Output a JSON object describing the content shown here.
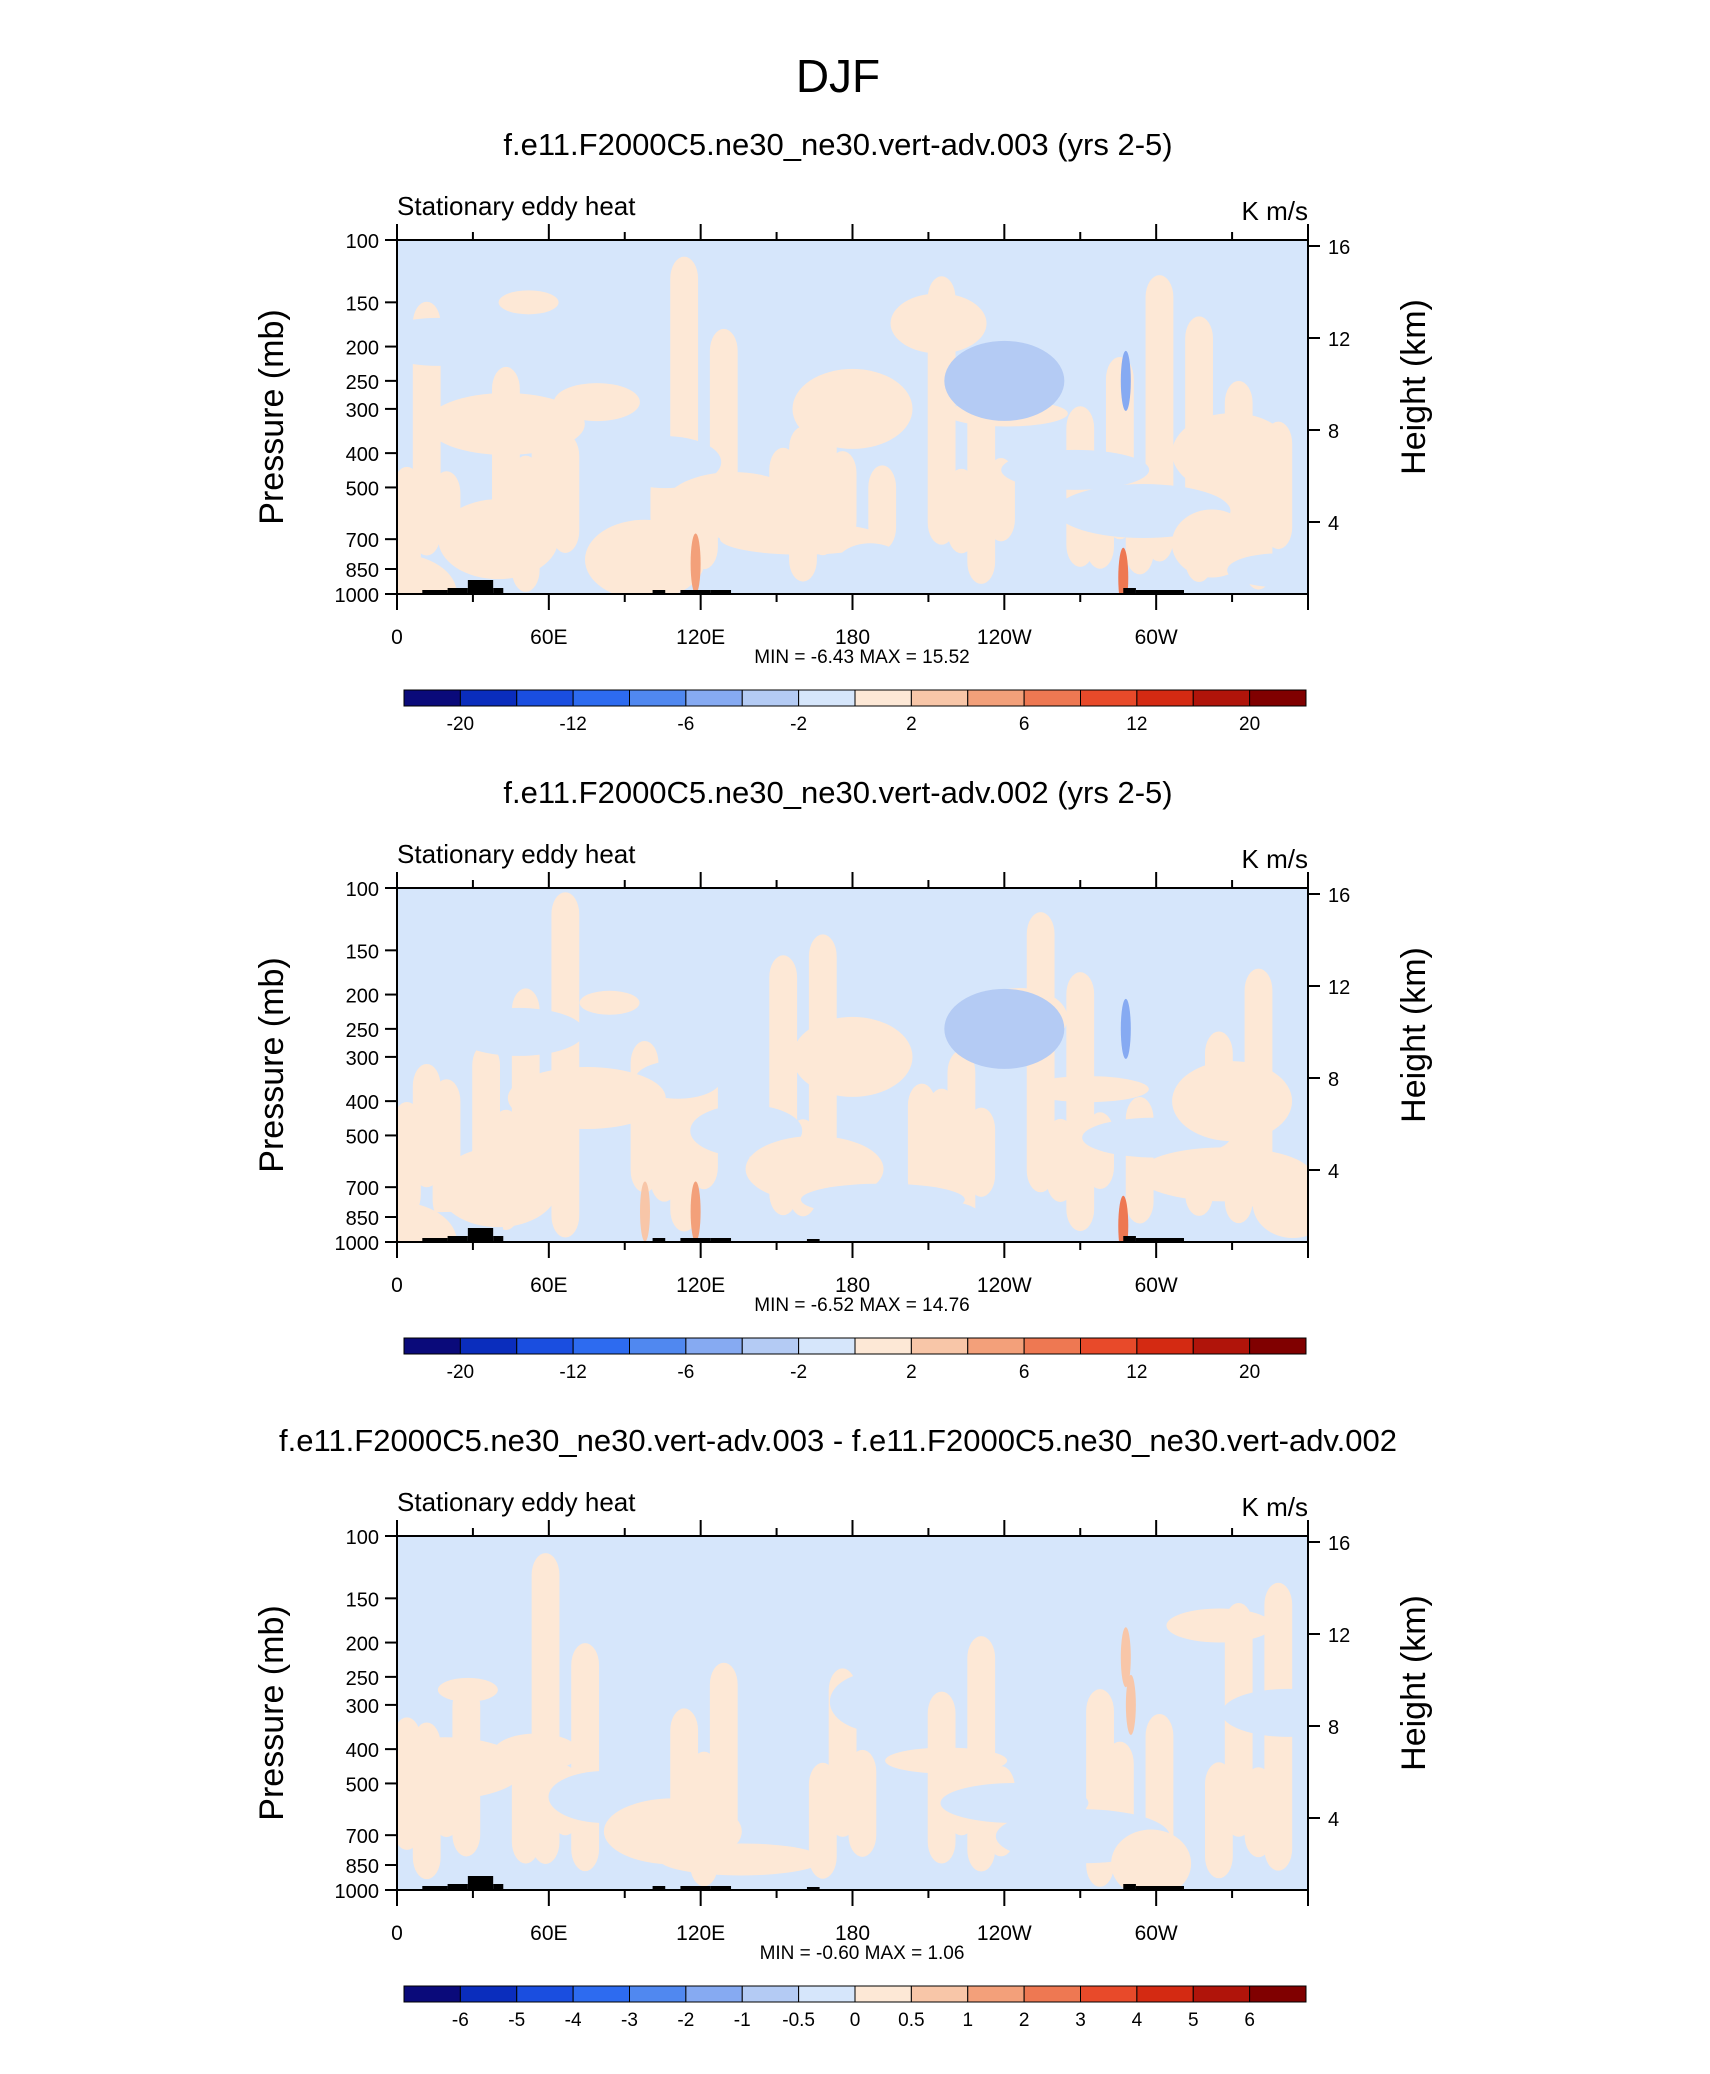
{
  "figure_title": "DJF",
  "chart_data": [
    {
      "type": "heatmap",
      "title": "f.e11.F2000C5.ne30_ne30.vert-adv.003 (yrs 2-5)",
      "left_label": "Stationary eddy heat",
      "units": "K m/s",
      "ylabel": "Pressure (mb)",
      "ylabel_right": "Height (km)",
      "x_ticks": [
        "0",
        "60E",
        "120E",
        "180",
        "120W",
        "60W"
      ],
      "x_tick_lon": [
        0,
        60,
        120,
        180,
        240,
        300
      ],
      "y_ticks": [
        "100",
        "150",
        "200",
        "250",
        "300",
        "400",
        "500",
        "700",
        "850",
        "1000"
      ],
      "y_tick_values": [
        100,
        150,
        200,
        250,
        300,
        400,
        500,
        700,
        850,
        1000
      ],
      "y_right_ticks": [
        "16",
        "12",
        "8",
        "4"
      ],
      "y_right_values": [
        16,
        12,
        8,
        4
      ],
      "ylim": [
        1000,
        100
      ],
      "xlim": [
        0,
        360
      ],
      "stats": "MIN =  -6.43  MAX =  15.52",
      "colorbar_labels": [
        "-20",
        "-12",
        "-6",
        "-2",
        "2",
        "6",
        "12",
        "20"
      ],
      "colorbar_label_slots": [
        1,
        3,
        5,
        7,
        9,
        11,
        13,
        15
      ],
      "features": [
        {
          "lon": 0,
          "p": 1000,
          "sign": 1
        },
        {
          "lon": 40,
          "p": 700,
          "sign": 1
        },
        {
          "lon": 98,
          "p": 800,
          "sign": 1
        },
        {
          "lon": 118,
          "p": 820,
          "sign": 3
        },
        {
          "lon": 180,
          "p": 300,
          "sign": 1
        },
        {
          "lon": 240,
          "p": 250,
          "sign": -1
        },
        {
          "lon": 287,
          "p": 900,
          "sign": 4
        },
        {
          "lon": 288,
          "p": 250,
          "sign": -2
        },
        {
          "lon": 330,
          "p": 400,
          "sign": 1
        }
      ]
    },
    {
      "type": "heatmap",
      "title": "f.e11.F2000C5.ne30_ne30.vert-adv.002 (yrs 2-5)",
      "left_label": "Stationary eddy heat",
      "units": "K m/s",
      "ylabel": "Pressure (mb)",
      "ylabel_right": "Height (km)",
      "x_ticks": [
        "0",
        "60E",
        "120E",
        "180",
        "120W",
        "60W"
      ],
      "x_tick_lon": [
        0,
        60,
        120,
        180,
        240,
        300
      ],
      "y_ticks": [
        "100",
        "150",
        "200",
        "250",
        "300",
        "400",
        "500",
        "700",
        "850",
        "1000"
      ],
      "y_tick_values": [
        100,
        150,
        200,
        250,
        300,
        400,
        500,
        700,
        850,
        1000
      ],
      "y_right_ticks": [
        "16",
        "12",
        "8",
        "4"
      ],
      "y_right_values": [
        16,
        12,
        8,
        4
      ],
      "ylim": [
        1000,
        100
      ],
      "xlim": [
        0,
        360
      ],
      "stats": "MIN =  -6.52  MAX =  14.76",
      "colorbar_labels": [
        "-20",
        "-12",
        "-6",
        "-2",
        "2",
        "6",
        "12",
        "20"
      ],
      "colorbar_label_slots": [
        1,
        3,
        5,
        7,
        9,
        11,
        13,
        15
      ],
      "features": [
        {
          "lon": 0,
          "p": 1000,
          "sign": 1
        },
        {
          "lon": 40,
          "p": 700,
          "sign": 1
        },
        {
          "lon": 98,
          "p": 820,
          "sign": 2
        },
        {
          "lon": 118,
          "p": 820,
          "sign": 3
        },
        {
          "lon": 180,
          "p": 300,
          "sign": 1
        },
        {
          "lon": 240,
          "p": 250,
          "sign": -1
        },
        {
          "lon": 287,
          "p": 900,
          "sign": 4
        },
        {
          "lon": 288,
          "p": 250,
          "sign": -2
        },
        {
          "lon": 330,
          "p": 400,
          "sign": 1
        }
      ]
    },
    {
      "type": "heatmap",
      "title": "f.e11.F2000C5.ne30_ne30.vert-adv.003 - f.e11.F2000C5.ne30_ne30.vert-adv.002",
      "left_label": "Stationary eddy heat",
      "units": "K m/s",
      "ylabel": "Pressure (mb)",
      "ylabel_right": "Height (km)",
      "x_ticks": [
        "0",
        "60E",
        "120E",
        "180",
        "120W",
        "60W"
      ],
      "x_tick_lon": [
        0,
        60,
        120,
        180,
        240,
        300
      ],
      "y_ticks": [
        "100",
        "150",
        "200",
        "250",
        "300",
        "400",
        "500",
        "700",
        "850",
        "1000"
      ],
      "y_tick_values": [
        100,
        150,
        200,
        250,
        300,
        400,
        500,
        700,
        850,
        1000
      ],
      "y_right_ticks": [
        "16",
        "12",
        "8",
        "4"
      ],
      "y_right_values": [
        16,
        12,
        8,
        4
      ],
      "ylim": [
        1000,
        100
      ],
      "xlim": [
        0,
        360
      ],
      "stats": "MIN =  -0.60  MAX =   1.06",
      "colorbar_labels": [
        "-6",
        "-5",
        "-4",
        "-3",
        "-2",
        "-1",
        "-0.5",
        "0",
        "0.5",
        "1",
        "2",
        "3",
        "4",
        "5",
        "6"
      ],
      "colorbar_label_slots": [
        1,
        2,
        3,
        4,
        5,
        6,
        7,
        8,
        9,
        10,
        11,
        12,
        13,
        14,
        15
      ],
      "features": [
        {
          "lon": 288,
          "p": 220,
          "sign": 2
        },
        {
          "lon": 290,
          "p": 300,
          "sign": 2
        }
      ]
    }
  ],
  "colorbar_colors": [
    "#0a0a7a",
    "#0a2dbd",
    "#1a4ee0",
    "#2d6bf0",
    "#5088f0",
    "#86aaf2",
    "#b4cbf4",
    "#d6e6fb",
    "#fde8d6",
    "#f8c6a8",
    "#f3a07a",
    "#ee7852",
    "#e84a2a",
    "#d42a12",
    "#b0140a",
    "#800000"
  ],
  "field_colors": {
    "neg": "#d6e6fb",
    "pos": "#fde8d6",
    "neg2": "#b4cbf4",
    "neg3": "#86aaf2",
    "pos2": "#f8c6a8",
    "pos3": "#f3a07a",
    "pos4": "#ee7852",
    "topo": "#000000"
  }
}
